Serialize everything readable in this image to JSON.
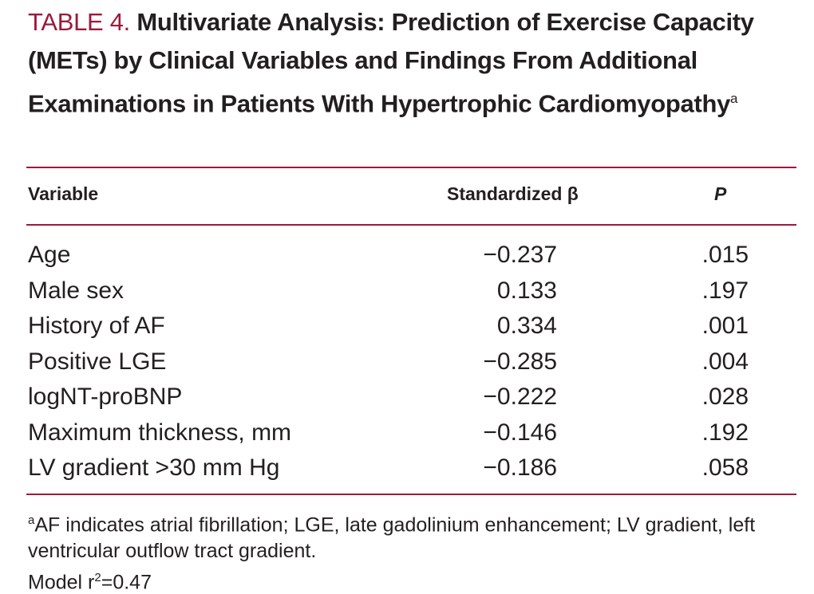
{
  "table_title": {
    "label": "TABLE 4.",
    "text": "Multivariate Analysis: Prediction of Exercise Capacity (METs) by Clinical Variables and Findings From Additional Examinations in Patients With Hypertrophic Cardiomyopathy",
    "footnote_mark": "a"
  },
  "table": {
    "header": [
      "Variable",
      "Standardized β",
      "P"
    ],
    "rows": [
      [
        "Age",
        "−0.237",
        ".015"
      ],
      [
        "Male sex",
        "0.133",
        ".197"
      ],
      [
        "History of AF",
        "0.334",
        ".001"
      ],
      [
        "Positive LGE",
        "−0.285",
        ".004"
      ],
      [
        "logNT-proBNP",
        "−0.222",
        ".028"
      ],
      [
        "Maximum thickness, mm",
        "−0.146",
        ".192"
      ],
      [
        "LV gradient >30 mm Hg",
        "−0.186",
        ".058"
      ]
    ]
  },
  "footnote": {
    "mark": "a",
    "text": "AF indicates atrial fibrillation; LGE, late gadolinium enhancement; LV gradient, left ventricular outflow tract gradient.",
    "model_prefix": "Model r",
    "model_sup": "2",
    "model_suffix": "=0.47"
  }
}
